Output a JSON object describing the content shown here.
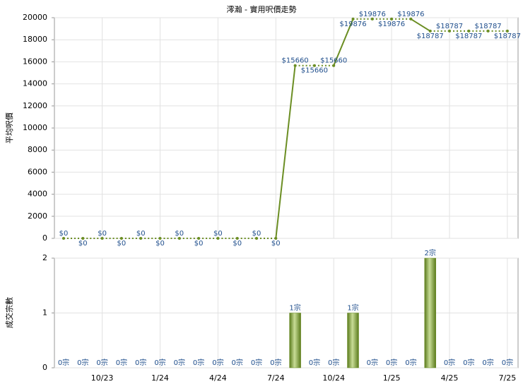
{
  "chart_data": [
    {
      "type": "line",
      "title": "澪瀚 - 實用呎價走勢",
      "y_label": "平均呎價",
      "color": "#6b8e23",
      "values": [
        0,
        0,
        0,
        0,
        0,
        0,
        0,
        0,
        0,
        0,
        0,
        0,
        15660,
        15660,
        15660,
        19876,
        19876,
        19876,
        19876,
        18787,
        18787,
        18787,
        18787,
        18787
      ],
      "value_labels": [
        "$0",
        "$0",
        "$0",
        "$0",
        "$0",
        "$0",
        "$0",
        "$0",
        "$0",
        "$0",
        "$0",
        "$0",
        "$15660",
        "$15660",
        "$15660",
        "$19876",
        "$19876",
        "$19876",
        "$19876",
        "$18787",
        "$18787",
        "$18787",
        "$18787",
        "$18787"
      ],
      "ylim": [
        0,
        20000
      ],
      "yticks": [
        0,
        2000,
        4000,
        6000,
        8000,
        10000,
        12000,
        14000,
        16000,
        18000,
        20000
      ],
      "grid": true
    },
    {
      "type": "bar",
      "y_label": "成交宗數",
      "color": "#6b8e23",
      "categories": [
        null,
        null,
        "10/23",
        null,
        null,
        "1/24",
        null,
        null,
        "4/24",
        null,
        null,
        "7/24",
        null,
        null,
        "10/24",
        null,
        null,
        "1/25",
        null,
        null,
        "4/25",
        null,
        null,
        "7/25"
      ],
      "values": [
        0,
        0,
        0,
        0,
        0,
        0,
        0,
        0,
        0,
        0,
        0,
        0,
        1,
        0,
        0,
        1,
        0,
        0,
        0,
        2,
        0,
        0,
        0,
        0
      ],
      "value_labels": [
        "0宗",
        "0宗",
        "0宗",
        "0宗",
        "0宗",
        "0宗",
        "0宗",
        "0宗",
        "0宗",
        "0宗",
        "0宗",
        "0宗",
        "1宗",
        "0宗",
        "0宗",
        "1宗",
        "0宗",
        "0宗",
        "0宗",
        "2宗",
        "0宗",
        "0宗",
        "0宗",
        "0宗"
      ],
      "ylim": [
        0,
        2
      ],
      "yticks": [
        0,
        1,
        2
      ],
      "grid": true
    }
  ]
}
